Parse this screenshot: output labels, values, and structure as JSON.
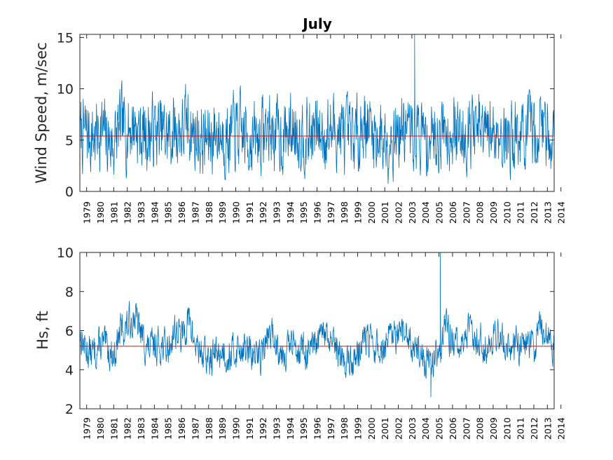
{
  "chart_data": [
    {
      "type": "line",
      "title": "July",
      "xlabel": "",
      "ylabel": "Wind Speed, m/sec",
      "ylim": [
        0,
        15.3
      ],
      "yticks": [
        0,
        5,
        10,
        15
      ],
      "xticklabels": [
        "1979",
        "1980",
        "1981",
        "1982",
        "1983",
        "1984",
        "1985",
        "1986",
        "1987",
        "1988",
        "1989",
        "1990",
        "1991",
        "1992",
        "1993",
        "1994",
        "1995",
        "1996",
        "1997",
        "1998",
        "1999",
        "2000",
        "2001",
        "2002",
        "2003",
        "2004",
        "2005",
        "2006",
        "2007",
        "2008",
        "2009",
        "2010",
        "2011",
        "2012",
        "2013",
        "2014"
      ],
      "xlim": [
        1979,
        2014
      ],
      "grid": false,
      "series": [
        {
          "color": "#0072BD",
          "x": [
            1979.0,
            1979.5,
            1980.0,
            1980.5,
            1981.0,
            1981.5,
            1982.0,
            1982.5,
            1983.0,
            1983.5,
            1984.0,
            1984.5,
            1985.0,
            1985.5,
            1986.0,
            1986.5,
            1987.0,
            1987.5,
            1988.0,
            1988.5,
            1989.0,
            1989.5,
            1990.0,
            1990.5,
            1991.0,
            1991.5,
            1992.0,
            1992.5,
            1993.0,
            1993.5,
            1994.0,
            1994.5,
            1995.0,
            1995.5,
            1996.0,
            1996.5,
            1997.0,
            1997.5,
            1998.0,
            1998.5,
            1999.0,
            1999.5,
            2000.0,
            2000.5,
            2001.0,
            2001.5,
            2002.0,
            2002.5,
            2003.0,
            2003.5,
            2004.0,
            2004.5,
            2005.0,
            2005.5,
            2006.0,
            2006.5,
            2007.0,
            2007.5,
            2008.0,
            2008.5,
            2009.0,
            2009.5,
            2010.0,
            2010.5,
            2011.0,
            2011.5,
            2012.0,
            2012.5,
            2013.0,
            2013.5,
            2014.0
          ],
          "y": [
            5.4,
            5.8,
            5.2,
            6.1,
            5.0,
            4.6,
            6.3,
            5.9,
            6.8,
            5.5,
            5.6,
            6.0,
            5.7,
            5.2,
            6.0,
            5.8,
            6.6,
            5.4,
            5.1,
            4.8,
            5.9,
            5.6,
            5.3,
            5.8,
            5.5,
            5.2,
            5.0,
            5.7,
            6.1,
            5.6,
            5.3,
            5.9,
            6.2,
            5.7,
            5.4,
            5.8,
            5.6,
            5.9,
            6.0,
            5.2,
            4.9,
            5.7,
            7.0,
            5.9,
            5.4,
            5.2,
            5.6,
            5.8,
            6.2,
            5.7,
            5.9,
            5.0,
            5.3,
            5.8,
            6.5,
            5.9,
            5.4,
            6.0,
            6.2,
            5.6,
            5.3,
            5.8,
            5.9,
            5.2,
            5.6,
            5.4,
            5.7,
            5.3,
            6.6,
            5.9,
            5.3
          ]
        },
        {
          "name": "mean",
          "color": "#FF0000",
          "x": [
            1979,
            2014
          ],
          "y": [
            5.4,
            5.4
          ]
        }
      ],
      "annotations": {
        "max_value": 15.3,
        "max_year": 2003.7
      }
    },
    {
      "type": "line",
      "title": "",
      "xlabel": "",
      "ylabel": "Hs, ft",
      "ylim": [
        2,
        10
      ],
      "yticks": [
        2,
        4,
        6,
        8,
        10
      ],
      "xlim": [
        1979,
        2014
      ],
      "grid": false,
      "xticklabels": [
        "1979",
        "1980",
        "1981",
        "1982",
        "1983",
        "1984",
        "1985",
        "1986",
        "1987",
        "1988",
        "1989",
        "1990",
        "1991",
        "1992",
        "1993",
        "1994",
        "1995",
        "1996",
        "1997",
        "1998",
        "1999",
        "2000",
        "2001",
        "2002",
        "2003",
        "2004",
        "2005",
        "2006",
        "2007",
        "2008",
        "2009",
        "2010",
        "2011",
        "2012",
        "2013",
        "2014"
      ],
      "series": [
        {
          "color": "#0072BD",
          "x": [
            1979.0,
            1979.5,
            1980.0,
            1980.5,
            1981.0,
            1981.5,
            1982.0,
            1982.5,
            1983.0,
            1983.5,
            1984.0,
            1984.5,
            1985.0,
            1985.5,
            1986.0,
            1986.5,
            1987.0,
            1987.5,
            1988.0,
            1988.5,
            1989.0,
            1989.5,
            1990.0,
            1990.5,
            1991.0,
            1991.5,
            1992.0,
            1992.5,
            1993.0,
            1993.5,
            1994.0,
            1994.5,
            1995.0,
            1995.5,
            1996.0,
            1996.5,
            1997.0,
            1997.5,
            1998.0,
            1998.5,
            1999.0,
            1999.5,
            2000.0,
            2000.5,
            2001.0,
            2001.5,
            2002.0,
            2002.5,
            2003.0,
            2003.5,
            2004.0,
            2004.5,
            2005.0,
            2005.5,
            2006.0,
            2006.5,
            2007.0,
            2007.5,
            2008.0,
            2008.5,
            2009.0,
            2009.5,
            2010.0,
            2010.5,
            2011.0,
            2011.5,
            2012.0,
            2012.5,
            2013.0,
            2013.5,
            2014.0
          ],
          "y": [
            5.8,
            5.0,
            4.8,
            5.3,
            5.1,
            4.7,
            6.0,
            6.2,
            6.8,
            5.9,
            5.0,
            5.2,
            5.3,
            5.0,
            6.1,
            5.6,
            6.6,
            5.3,
            4.9,
            4.4,
            4.8,
            5.0,
            4.7,
            5.0,
            5.2,
            4.8,
            4.6,
            5.0,
            5.9,
            5.4,
            4.9,
            5.2,
            5.3,
            5.0,
            4.8,
            5.2,
            5.9,
            5.3,
            4.9,
            4.5,
            4.4,
            4.8,
            5.7,
            5.3,
            5.0,
            5.1,
            5.6,
            5.5,
            5.9,
            5.4,
            5.1,
            4.3,
            4.5,
            4.9,
            6.3,
            5.4,
            5.0,
            5.8,
            6.0,
            5.5,
            5.2,
            5.7,
            5.9,
            5.1,
            5.4,
            5.2,
            5.6,
            5.1,
            6.4,
            5.7,
            5.3
          ]
        },
        {
          "name": "mean",
          "color": "#FF0000",
          "x": [
            1979,
            2014
          ],
          "y": [
            5.2,
            5.2
          ]
        }
      ],
      "annotations": {
        "max_value": 10.0,
        "max_year": 2005.6,
        "min_value": 2.6,
        "min_year": 2004.9
      }
    }
  ]
}
